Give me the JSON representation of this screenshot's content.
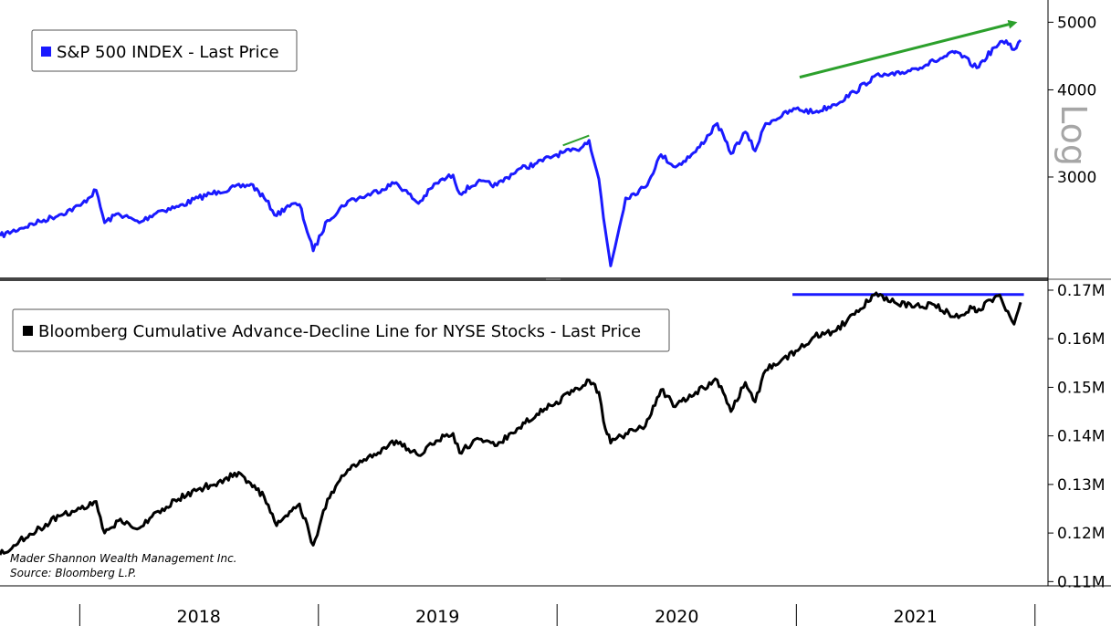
{
  "chart_data": [
    {
      "type": "line",
      "legend": "S&P 500 INDEX - Last Price",
      "legend_placement": "top-left",
      "scale": "log",
      "scale_label": "Log",
      "ylim": [
        2180,
        5300
      ],
      "yticks": [
        {
          "value": 3000,
          "label": "3000"
        },
        {
          "value": 4000,
          "label": "4000"
        },
        {
          "value": 5000,
          "label": "5000"
        }
      ],
      "colors": {
        "series": "#1a1aff",
        "annotation": "#2ca02c"
      },
      "series": [
        {
          "x": [
            "2017-09-01",
            "2017-10-01",
            "2017-11-01",
            "2017-12-01",
            "2018-01-02",
            "2018-01-26",
            "2018-02-08",
            "2018-03-01",
            "2018-04-02",
            "2018-05-01",
            "2018-06-01",
            "2018-07-01",
            "2018-08-01",
            "2018-09-20",
            "2018-10-10",
            "2018-10-29",
            "2018-11-15",
            "2018-12-03",
            "2018-12-24",
            "2019-01-15",
            "2019-02-15",
            "2019-03-15",
            "2019-04-30",
            "2019-06-03",
            "2019-06-30",
            "2019-07-26",
            "2019-08-05",
            "2019-09-01",
            "2019-10-01",
            "2019-11-01",
            "2019-12-01",
            "2019-12-31",
            "2020-01-31",
            "2020-02-19",
            "2020-03-05",
            "2020-03-12",
            "2020-03-23",
            "2020-04-15",
            "2020-05-15",
            "2020-06-08",
            "2020-06-30",
            "2020-07-31",
            "2020-09-02",
            "2020-09-23",
            "2020-10-15",
            "2020-10-30",
            "2020-11-15",
            "2020-12-31",
            "2021-01-29",
            "2021-02-28",
            "2021-03-31",
            "2021-04-30",
            "2021-05-31",
            "2021-06-30",
            "2021-07-31",
            "2021-08-31",
            "2021-09-02",
            "2021-10-04",
            "2021-10-31",
            "2021-11-18",
            "2021-11-30",
            "2021-12-10"
          ],
          "values": [
            2470,
            2530,
            2590,
            2650,
            2730,
            2872,
            2580,
            2660,
            2580,
            2680,
            2720,
            2800,
            2860,
            2930,
            2800,
            2640,
            2730,
            2740,
            2351,
            2600,
            2770,
            2820,
            2945,
            2750,
            2940,
            3020,
            2840,
            2950,
            2920,
            3070,
            3140,
            3230,
            3280,
            3386,
            2980,
            2620,
            2237,
            2800,
            2900,
            3230,
            3100,
            3260,
            3580,
            3240,
            3480,
            3270,
            3580,
            3756,
            3714,
            3811,
            3972,
            4180,
            4200,
            4290,
            4395,
            4520,
            4537,
            4300,
            4600,
            4704,
            4567,
            4712
          ]
        }
      ],
      "annotations": [
        {
          "type": "trend-line",
          "x": [
            "2020-01-10",
            "2020-02-19"
          ],
          "y": [
            3330,
            3440
          ]
        },
        {
          "type": "trend-arrow",
          "x": [
            "2021-01-06",
            "2021-12-01"
          ],
          "y": [
            4170,
            4990
          ]
        }
      ]
    },
    {
      "type": "line",
      "legend": "Bloomberg Cumulative Advance-Decline Line for NYSE Stocks - Last Price",
      "legend_placement": "top-left",
      "ylim": [
        0.1095,
        0.1715
      ],
      "yticks": [
        {
          "value": 0.11,
          "label": "0.11M"
        },
        {
          "value": 0.12,
          "label": "0.12M"
        },
        {
          "value": 0.13,
          "label": "0.13M"
        },
        {
          "value": 0.14,
          "label": "0.14M"
        },
        {
          "value": 0.15,
          "label": "0.15M"
        },
        {
          "value": 0.16,
          "label": "0.16M"
        },
        {
          "value": 0.17,
          "label": "0.17M"
        }
      ],
      "colors": {
        "series": "#000000",
        "annotation": "#1a1aff"
      },
      "series": [
        {
          "x": [
            "2017-09-01",
            "2017-10-01",
            "2017-11-01",
            "2017-12-01",
            "2018-01-02",
            "2018-01-26",
            "2018-02-08",
            "2018-03-01",
            "2018-04-02",
            "2018-05-01",
            "2018-06-01",
            "2018-07-01",
            "2018-08-01",
            "2018-09-01",
            "2018-10-10",
            "2018-10-29",
            "2018-11-15",
            "2018-12-03",
            "2018-12-24",
            "2019-01-15",
            "2019-02-15",
            "2019-03-15",
            "2019-04-30",
            "2019-06-03",
            "2019-06-30",
            "2019-07-26",
            "2019-08-05",
            "2019-09-01",
            "2019-10-01",
            "2019-11-01",
            "2019-12-01",
            "2019-12-31",
            "2020-01-20",
            "2020-02-19",
            "2020-03-05",
            "2020-03-12",
            "2020-03-23",
            "2020-04-15",
            "2020-05-15",
            "2020-06-08",
            "2020-06-30",
            "2020-07-31",
            "2020-09-02",
            "2020-09-23",
            "2020-10-15",
            "2020-10-30",
            "2020-11-15",
            "2020-12-31",
            "2021-01-29",
            "2021-02-28",
            "2021-03-31",
            "2021-04-30",
            "2021-05-31",
            "2021-06-30",
            "2021-07-31",
            "2021-08-31",
            "2021-09-30",
            "2021-10-04",
            "2021-10-31",
            "2021-11-08",
            "2021-11-30",
            "2021-12-10"
          ],
          "values": [
            0.1155,
            0.1185,
            0.121,
            0.1235,
            0.125,
            0.1265,
            0.12,
            0.1225,
            0.121,
            0.1245,
            0.127,
            0.129,
            0.1305,
            0.1325,
            0.1275,
            0.1215,
            0.1235,
            0.126,
            0.1175,
            0.127,
            0.133,
            0.135,
            0.139,
            0.136,
            0.139,
            0.1405,
            0.1365,
            0.1395,
            0.138,
            0.1415,
            0.1445,
            0.147,
            0.1485,
            0.1515,
            0.149,
            0.143,
            0.1385,
            0.1405,
            0.142,
            0.1495,
            0.146,
            0.149,
            0.1515,
            0.145,
            0.151,
            0.147,
            0.1535,
            0.1575,
            0.1605,
            0.1615,
            0.165,
            0.169,
            0.1675,
            0.1665,
            0.167,
            0.1645,
            0.1665,
            0.1655,
            0.1685,
            0.169,
            0.163,
            0.1675
          ]
        }
      ],
      "annotations": [
        {
          "type": "resistance-line",
          "x": [
            "2020-12-26",
            "2021-12-15"
          ],
          "y": [
            0.1691,
            0.1691
          ]
        }
      ]
    }
  ],
  "x_axis": {
    "year_labels": [
      {
        "label": "2018",
        "x": "2018-07-02"
      },
      {
        "label": "2019",
        "x": "2019-07-02"
      },
      {
        "label": "2020",
        "x": "2020-07-02"
      },
      {
        "label": "2021",
        "x": "2021-07-02"
      }
    ],
    "year_boundaries": [
      "2018-01-01",
      "2019-01-01",
      "2020-01-01",
      "2021-01-01",
      "2022-01-01"
    ]
  },
  "footer": {
    "line1": "Mader Shannon Wealth Management Inc.",
    "line2": "Source: Bloomberg L.P."
  }
}
